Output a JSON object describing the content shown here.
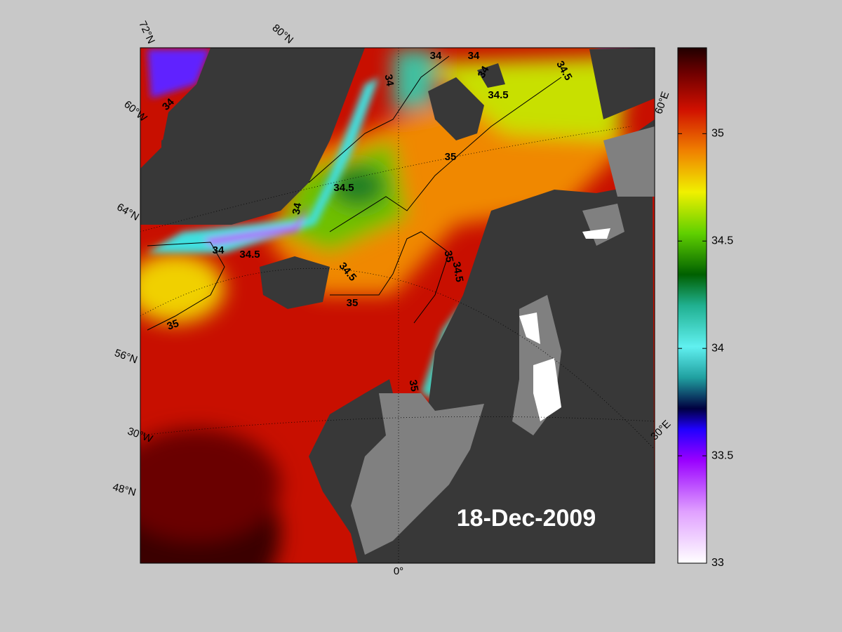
{
  "map": {
    "date": "18-Dec-2009",
    "graticule_labels": [
      "72°N",
      "80°N",
      "60°W",
      "64°N",
      "56°N",
      "30°W",
      "48°N",
      "0°",
      "30°E",
      "60°E"
    ],
    "contour_labels": [
      "34",
      "34",
      "34",
      "34.5",
      "34",
      "34.5",
      "34",
      "35",
      "34.5",
      "34",
      "34",
      "34.5",
      "35",
      "34.5",
      "34.5",
      "35",
      "35",
      "35"
    ]
  },
  "colorbar": {
    "lim": [
      33,
      35.4
    ],
    "ticks": [
      33,
      33.5,
      34,
      34.5,
      35
    ]
  }
}
